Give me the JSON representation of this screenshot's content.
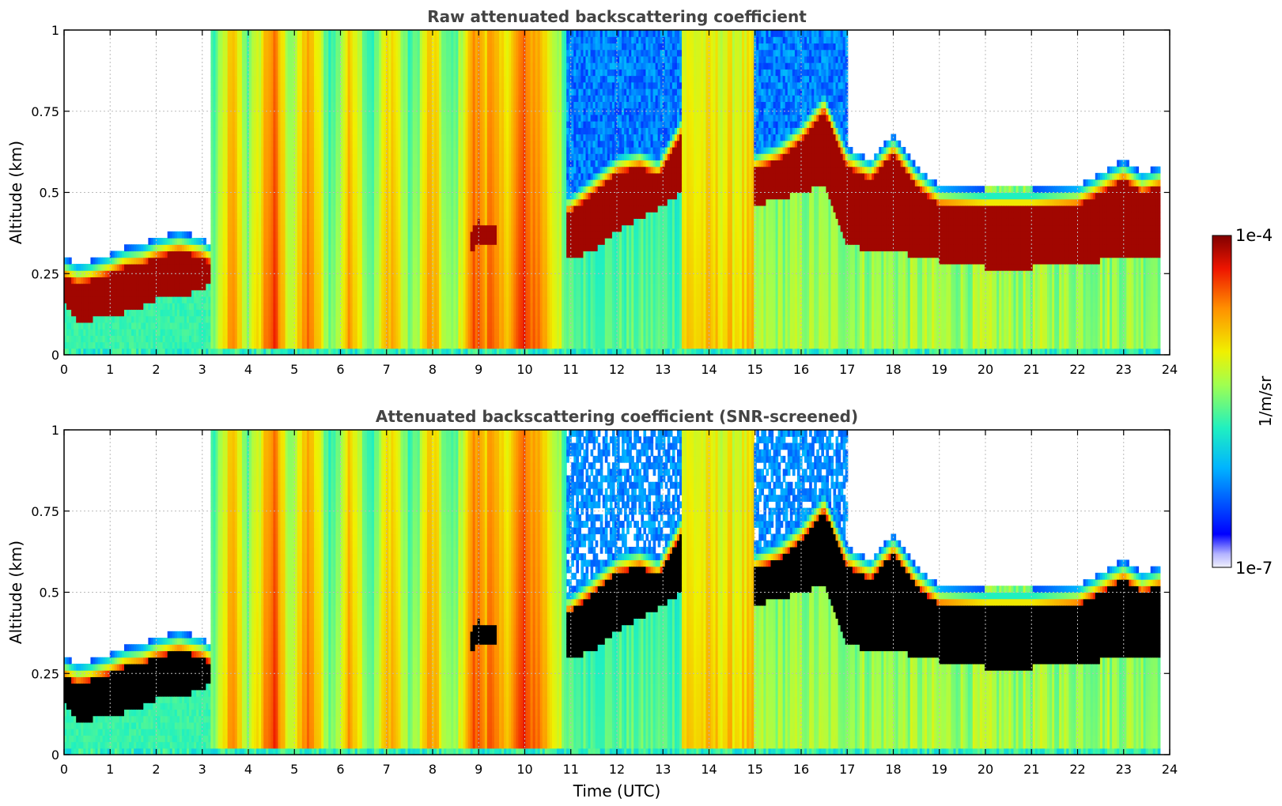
{
  "chart_data": [
    {
      "type": "heatmap",
      "title": "Raw attenuated backscattering coefficient",
      "xlabel": "",
      "ylabel": "Altitude (km)",
      "xlim": [
        0,
        24
      ],
      "ylim": [
        0,
        1
      ],
      "x_ticks": [
        "0",
        "1",
        "2",
        "3",
        "4",
        "5",
        "6",
        "7",
        "8",
        "9",
        "10",
        "11",
        "12",
        "13",
        "14",
        "15",
        "16",
        "17",
        "18",
        "19",
        "20",
        "21",
        "22",
        "23",
        "24"
      ],
      "y_ticks": [
        "0",
        "0.25",
        "0.5",
        "0.75",
        "1"
      ],
      "grid": true,
      "colorscale": "jet",
      "screened": false,
      "layer": {
        "time": [
          0,
          0.3,
          0.6,
          1.0,
          1.3,
          1.7,
          2.0,
          2.5,
          3.0,
          3.2,
          8.8,
          9.0,
          9.4,
          10.5,
          11.0,
          11.5,
          12.0,
          12.5,
          12.9,
          13.4,
          15.0,
          15.5,
          16.0,
          16.5,
          17.0,
          17.5,
          18.0,
          18.5,
          19.0,
          20.0,
          21.0,
          22.0,
          23.0,
          23.4,
          23.8
        ],
        "base": [
          0.16,
          0.1,
          0.11,
          0.12,
          0.13,
          0.15,
          0.17,
          0.18,
          0.2,
          0.22,
          0.32,
          0.34,
          0.33,
          0.35,
          0.3,
          0.32,
          0.38,
          0.42,
          0.45,
          0.5,
          0.46,
          0.48,
          0.5,
          0.52,
          0.34,
          0.32,
          0.33,
          0.3,
          0.29,
          0.27,
          0.27,
          0.28,
          0.3,
          0.3,
          0.31
        ],
        "top": [
          0.24,
          0.22,
          0.23,
          0.25,
          0.27,
          0.28,
          0.3,
          0.32,
          0.3,
          0.28,
          0.38,
          0.41,
          0.4,
          0.43,
          0.44,
          0.5,
          0.56,
          0.58,
          0.55,
          0.68,
          0.57,
          0.6,
          0.66,
          0.75,
          0.58,
          0.54,
          0.62,
          0.52,
          0.46,
          0.45,
          0.45,
          0.46,
          0.54,
          0.5,
          0.52
        ]
      }
    },
    {
      "type": "heatmap",
      "title": "Attenuated backscattering coefficient (SNR-screened)",
      "xlabel": "Time (UTC)",
      "ylabel": "Altitude (km)",
      "xlim": [
        0,
        24
      ],
      "ylim": [
        0,
        1
      ],
      "x_ticks": [
        "0",
        "1",
        "2",
        "3",
        "4",
        "5",
        "6",
        "7",
        "8",
        "9",
        "10",
        "11",
        "12",
        "13",
        "14",
        "15",
        "16",
        "17",
        "18",
        "19",
        "20",
        "21",
        "22",
        "23",
        "24"
      ],
      "y_ticks": [
        "0",
        "0.25",
        "0.5",
        "0.75",
        "1"
      ],
      "grid": true,
      "colorscale": "jet",
      "screened": true,
      "saturated_color": "#000000"
    }
  ],
  "colorbar": {
    "label": "1/m/sr",
    "max_label": "1e-4",
    "min_label": "1e-7",
    "range": [
      1e-07,
      0.0001
    ],
    "scale": "log"
  }
}
